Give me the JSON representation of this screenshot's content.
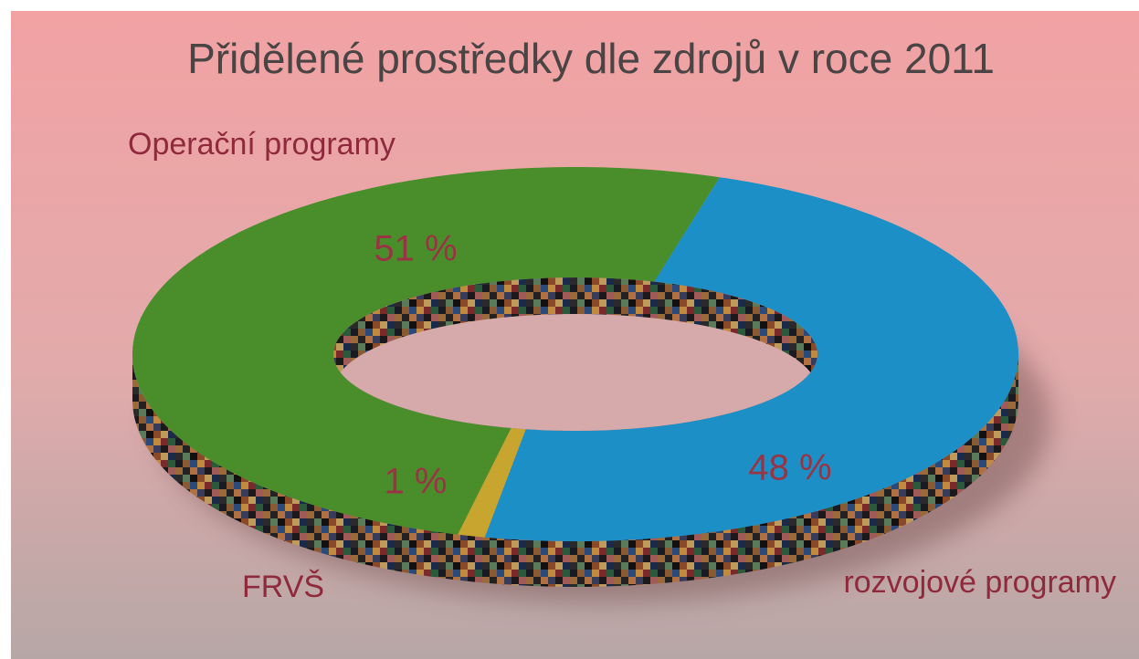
{
  "chart_data": {
    "type": "pie",
    "title": "Přidělené prostředky dle zdrojů v roce 2011",
    "categories": [
      "Operační programy",
      "FRVŠ",
      "rozvojové programy"
    ],
    "values": [
      51,
      1,
      48
    ],
    "value_labels": [
      "51 %",
      "1 %",
      "48 %"
    ],
    "colors": [
      "#4a8e2c",
      "#c7a52e",
      "#1c8fc6"
    ],
    "donut": true
  }
}
